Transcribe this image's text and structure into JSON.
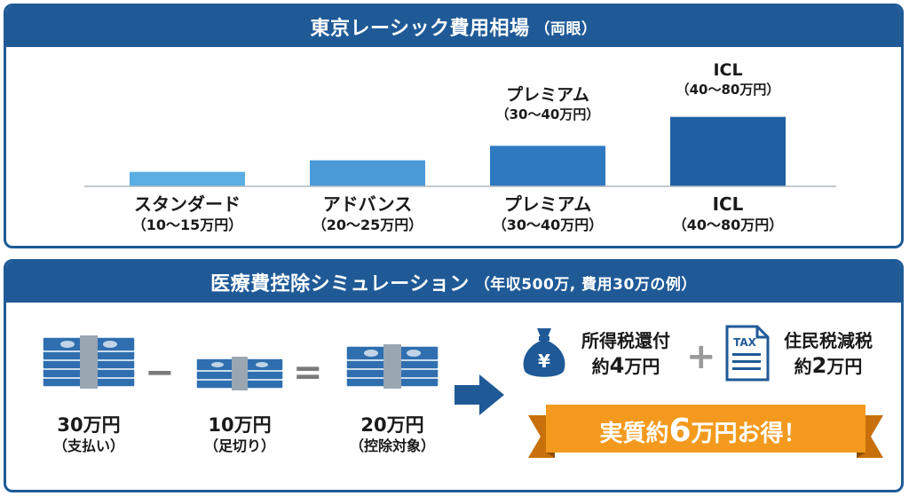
{
  "chart_data": {
    "type": "bar",
    "title": "東京レーシック費用相場",
    "title_note": "（両眼）",
    "unit": "万円",
    "categories": [
      {
        "name": "スタンダード",
        "range": "（10〜15万円）"
      },
      {
        "name": "アドバンス",
        "range": "（20〜25万円）"
      },
      {
        "name": "プレミアム",
        "range": "（30〜40万円）"
      },
      {
        "name": "ICL",
        "range": "（40〜80万円）"
      }
    ],
    "values": [
      12.5,
      22.5,
      35,
      60
    ],
    "ymax": 115,
    "bar_colors": [
      "#5aaee3",
      "#4a9ad8",
      "#2f79c0",
      "#1f5fa3"
    ],
    "bar_annotations": [
      null,
      null,
      {
        "name": "プレミアム",
        "range": "（30〜40万円）"
      },
      {
        "name": "ICL",
        "range": "（40〜80万円）"
      }
    ]
  },
  "simulation": {
    "title": "医療費控除シミュレーション",
    "title_note": "（年収500万, 費用30万の例）",
    "items": [
      {
        "amount": "30万円",
        "note": "（支払い）"
      },
      {
        "amount": "10万円",
        "note": "（足切り）"
      },
      {
        "amount": "20万円",
        "note": "（控除対象）"
      }
    ],
    "operators": {
      "minus": "−",
      "equals": "="
    },
    "benefits": [
      {
        "title": "所得税還付",
        "prefix": "約",
        "num": "4",
        "suffix": "万円",
        "icon": "money-bag-icon",
        "icon_text": "¥"
      },
      {
        "title": "住民税減税",
        "prefix": "約",
        "num": "2",
        "suffix": "万円",
        "icon": "tax-document-icon",
        "icon_text": "TAX"
      }
    ],
    "plus": "+",
    "result": {
      "prefix": "実質約",
      "num": "6",
      "suffix": "万円お得！"
    },
    "colors": {
      "primary": "#1f5a97",
      "ribbon": "#f39a1e",
      "ribbon_dark": "#c7700c"
    }
  }
}
